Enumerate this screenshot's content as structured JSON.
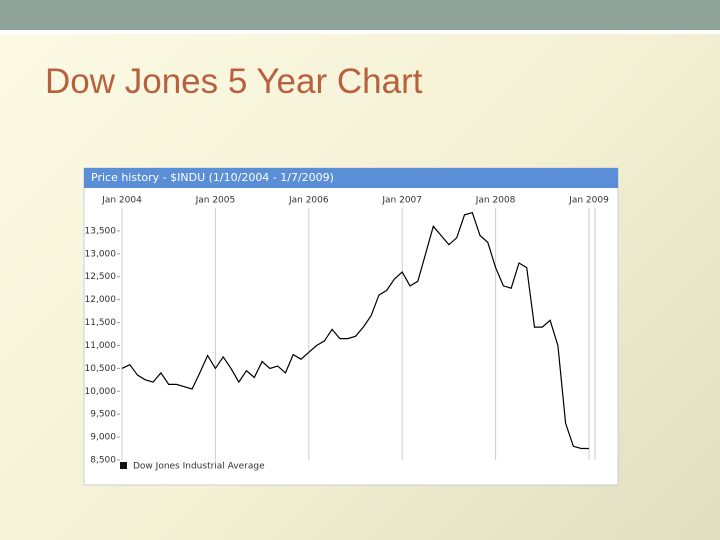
{
  "title": "Dow Jones 5 Year Chart",
  "chart_data": {
    "type": "line",
    "title": "Price history - $INDU (1/10/2004 - 1/7/2009)",
    "x": [
      "2004-01",
      "2004-02",
      "2004-03",
      "2004-04",
      "2004-05",
      "2004-06",
      "2004-07",
      "2004-08",
      "2004-09",
      "2004-10",
      "2004-11",
      "2004-12",
      "2005-01",
      "2005-02",
      "2005-03",
      "2005-04",
      "2005-05",
      "2005-06",
      "2005-07",
      "2005-08",
      "2005-09",
      "2005-10",
      "2005-11",
      "2005-12",
      "2006-01",
      "2006-02",
      "2006-03",
      "2006-04",
      "2006-05",
      "2006-06",
      "2006-07",
      "2006-08",
      "2006-09",
      "2006-10",
      "2006-11",
      "2006-12",
      "2007-01",
      "2007-02",
      "2007-03",
      "2007-04",
      "2007-05",
      "2007-06",
      "2007-07",
      "2007-08",
      "2007-09",
      "2007-10",
      "2007-11",
      "2007-12",
      "2008-01",
      "2008-02",
      "2008-03",
      "2008-04",
      "2008-05",
      "2008-06",
      "2008-07",
      "2008-08",
      "2008-09",
      "2008-10",
      "2008-11",
      "2008-12",
      "2009-01"
    ],
    "series": [
      {
        "name": "Dow Jones Industrial Average",
        "color": "#000000",
        "values": [
          10500,
          10580,
          10350,
          10250,
          10200,
          10400,
          10150,
          10150,
          10100,
          10050,
          10400,
          10780,
          10500,
          10750,
          10500,
          10200,
          10450,
          10300,
          10650,
          10500,
          10550,
          10400,
          10800,
          10700,
          10850,
          11000,
          11100,
          11350,
          11150,
          11150,
          11200,
          11400,
          11650,
          12100,
          12200,
          12450,
          12600,
          12300,
          12400,
          13000,
          13600,
          13400,
          13200,
          13350,
          13850,
          13900,
          13400,
          13250,
          12700,
          12300,
          12250,
          12800,
          12700,
          11400,
          11400,
          11550,
          11000,
          9300,
          8800,
          8750,
          8750
        ]
      }
    ],
    "xticks": [
      {
        "value": "2004-01",
        "label": "Jan 2004"
      },
      {
        "value": "2005-01",
        "label": "Jan 2005"
      },
      {
        "value": "2006-01",
        "label": "Jan 2006"
      },
      {
        "value": "2007-01",
        "label": "Jan 2007"
      },
      {
        "value": "2008-01",
        "label": "Jan 2008"
      },
      {
        "value": "2009-01",
        "label": "Jan 2009"
      }
    ],
    "ylim": [
      8500,
      14000
    ],
    "yticks": [
      {
        "value": 8500,
        "label": "8,500"
      },
      {
        "value": 9000,
        "label": "9,000"
      },
      {
        "value": 9500,
        "label": "9,500"
      },
      {
        "value": 10000,
        "label": "10,000"
      },
      {
        "value": 10500,
        "label": "10,500"
      },
      {
        "value": 11000,
        "label": "11,000"
      },
      {
        "value": 11500,
        "label": "11,500"
      },
      {
        "value": 12000,
        "label": "12,000"
      },
      {
        "value": 12500,
        "label": "12,500"
      },
      {
        "value": 13000,
        "label": "13,000"
      },
      {
        "value": 13500,
        "label": "13,500"
      }
    ],
    "grid": "x"
  }
}
